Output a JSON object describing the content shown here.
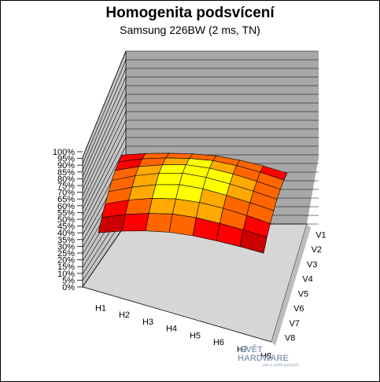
{
  "chart_data": {
    "type": "surface-3d",
    "title": "Homogenita podsvícení",
    "subtitle": "Samsung 226BW (2 ms,  TN)",
    "z_ticks": [
      "0%",
      "5%",
      "10%",
      "15%",
      "20%",
      "25%",
      "30%",
      "35%",
      "40%",
      "45%",
      "50%",
      "55%",
      "60%",
      "65%",
      "70%",
      "75%",
      "80%",
      "85%",
      "90%",
      "95%",
      "100%"
    ],
    "x_categories": [
      "H1",
      "H2",
      "H3",
      "H4",
      "H5",
      "H6",
      "H7",
      "H8"
    ],
    "y_categories": [
      "V1",
      "V2",
      "V3",
      "V4",
      "V5",
      "V6",
      "V7",
      "V8"
    ],
    "zlim": [
      0,
      100
    ],
    "values": [
      [
        66,
        72,
        76,
        79,
        80,
        78,
        74,
        68
      ],
      [
        71,
        79,
        84,
        87,
        88,
        85,
        80,
        73
      ],
      [
        74,
        83,
        89,
        93,
        92,
        88,
        82,
        75
      ],
      [
        75,
        85,
        92,
        96,
        94,
        89,
        83,
        76
      ],
      [
        74,
        84,
        91,
        95,
        93,
        88,
        82,
        75
      ],
      [
        72,
        81,
        87,
        90,
        89,
        85,
        79,
        72
      ],
      [
        68,
        76,
        81,
        84,
        83,
        79,
        74,
        68
      ],
      [
        62,
        68,
        72,
        74,
        73,
        70,
        66,
        61
      ]
    ],
    "color_bands": [
      "#6a0a6a",
      "#000000",
      "#cc0000",
      "#ff0000",
      "#ff6600",
      "#ffaa00",
      "#ffff00"
    ],
    "watermark": {
      "line1": "SVĚT",
      "line2": "HARDWARE",
      "line3": "...vše o světě počítačů"
    }
  }
}
